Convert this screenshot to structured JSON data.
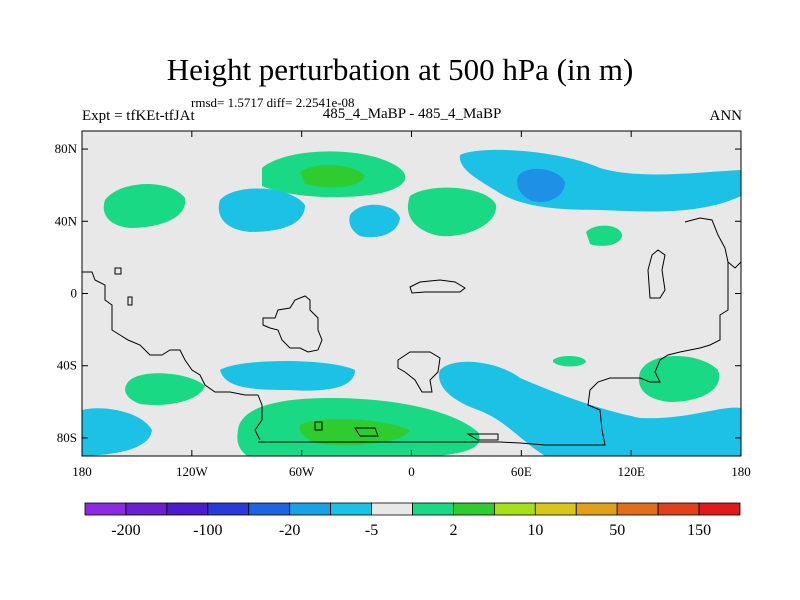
{
  "header": {
    "title": "Height perturbation at 500 hPa (in m)",
    "stats": "rmsd= 1.5717 diff= 2.2541e-08",
    "left_label": "Expt = tfKEt-tfJAt",
    "center_label": "485_4_MaBP - 485_4_MaBP",
    "right_label": "ANN"
  },
  "map": {
    "background_color": "#e8e8e8",
    "lon_range": [
      -180,
      180
    ],
    "lat_range": [
      -90,
      90
    ],
    "lat_ticks": [
      {
        "value": 80,
        "label": "80N"
      },
      {
        "value": 40,
        "label": "40N"
      },
      {
        "value": 0,
        "label": "0"
      },
      {
        "value": -40,
        "label": "40S"
      },
      {
        "value": -80,
        "label": "80S"
      }
    ],
    "lon_ticks": [
      {
        "value": -180,
        "label": "180"
      },
      {
        "value": -120,
        "label": "120W"
      },
      {
        "value": -60,
        "label": "60W"
      },
      {
        "value": 0,
        "label": "0"
      },
      {
        "value": 60,
        "label": "60E"
      },
      {
        "value": 120,
        "label": "120E"
      },
      {
        "value": 180,
        "label": "180"
      }
    ]
  },
  "colorbar": {
    "colors": [
      "#8a2be2",
      "#6a1fd0",
      "#4b1bcc",
      "#2a3ad8",
      "#1e64e0",
      "#1aa0e6",
      "#1cc2e6",
      "#e8e8e8",
      "#1ad985",
      "#2ecc2e",
      "#a6e01a",
      "#d6c81a",
      "#e0a01a",
      "#e06e1a",
      "#e0401a",
      "#e01a1a"
    ],
    "labels": [
      "-200",
      "-100",
      "-20",
      "-5",
      "2",
      "10",
      "50",
      "150"
    ]
  }
}
